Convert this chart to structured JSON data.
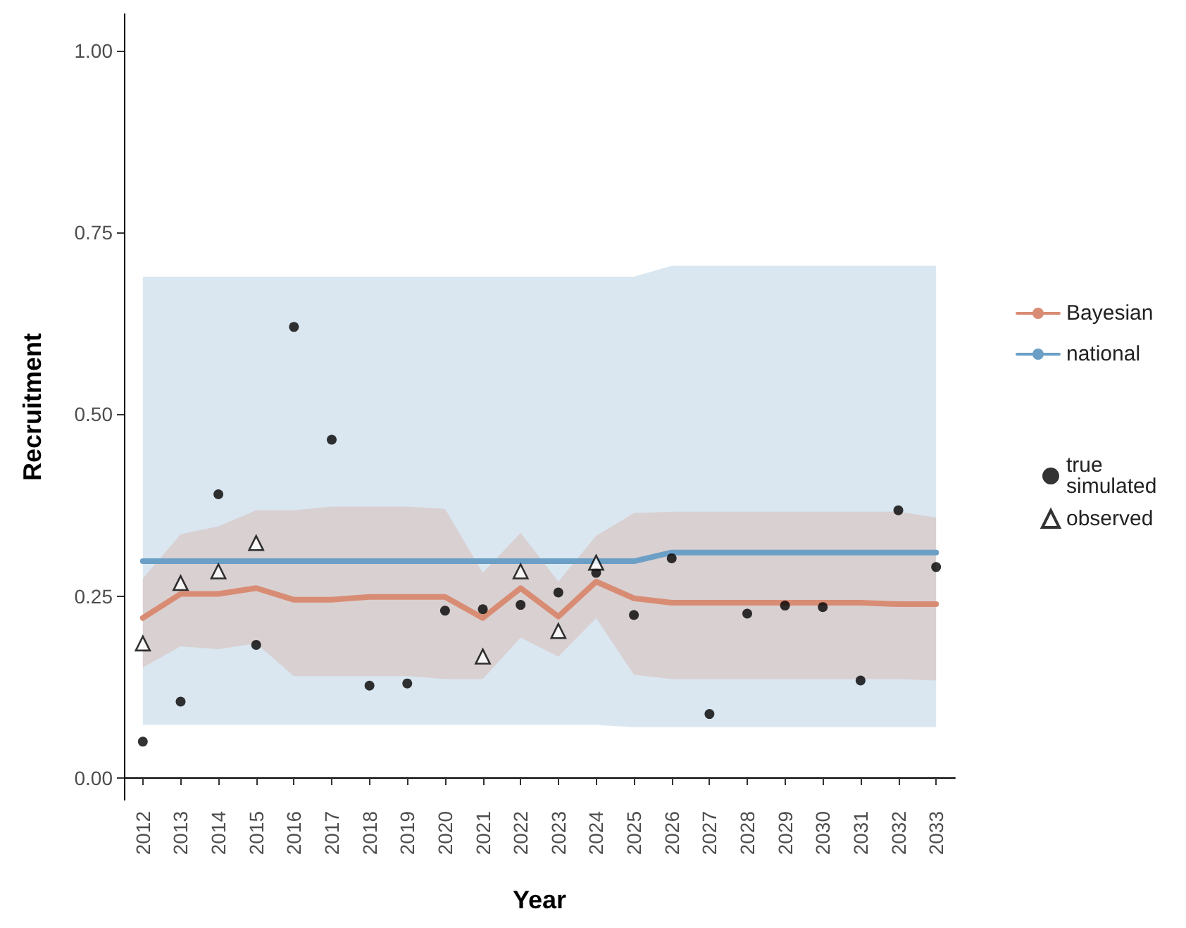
{
  "chart_data": {
    "type": "line",
    "xlabel": "Year",
    "ylabel": "Recruitment",
    "categories": [
      "2012",
      "2013",
      "2014",
      "2015",
      "2016",
      "2017",
      "2018",
      "2019",
      "2020",
      "2021",
      "2022",
      "2023",
      "2024",
      "2025",
      "2026",
      "2027",
      "2028",
      "2029",
      "2030",
      "2031",
      "2032",
      "2033"
    ],
    "ylim": [
      -0.03,
      1.05
    ],
    "yticks": [
      {
        "value": 0,
        "label": "0.00"
      },
      {
        "value": 0.25,
        "label": "0.25"
      },
      {
        "value": 0.5,
        "label": "0.50"
      },
      {
        "value": 0.75,
        "label": "0.75"
      },
      {
        "value": 1,
        "label": "1.00"
      }
    ],
    "legend": "right",
    "grid": false,
    "series": [
      {
        "name": "Bayesian",
        "color": "#d98c74",
        "marker": "none",
        "line_style": "solid",
        "values": [
          0.22,
          0.253,
          0.253,
          0.261,
          0.245,
          0.245,
          0.249,
          0.249,
          0.249,
          0.22,
          0.261,
          0.222,
          0.27,
          0.247,
          0.241,
          0.241,
          0.241,
          0.241,
          0.241,
          0.241,
          0.239,
          0.239
        ],
        "lower": [
          0.152,
          0.181,
          0.177,
          0.185,
          0.14,
          0.14,
          0.14,
          0.14,
          0.136,
          0.136,
          0.193,
          0.167,
          0.22,
          0.142,
          0.136,
          0.136,
          0.136,
          0.136,
          0.136,
          0.136,
          0.136,
          0.134
        ],
        "upper": [
          0.274,
          0.335,
          0.346,
          0.368,
          0.368,
          0.373,
          0.373,
          0.373,
          0.37,
          0.282,
          0.337,
          0.27,
          0.333,
          0.364,
          0.366,
          0.366,
          0.366,
          0.366,
          0.366,
          0.366,
          0.366,
          0.358
        ]
      },
      {
        "name": "national",
        "color": "#6b9fc6",
        "marker": "none",
        "line_style": "solid",
        "values": [
          0.298,
          0.298,
          0.298,
          0.298,
          0.298,
          0.298,
          0.298,
          0.298,
          0.298,
          0.298,
          0.298,
          0.298,
          0.298,
          0.298,
          0.31,
          0.31,
          0.31,
          0.31,
          0.31,
          0.31,
          0.31,
          0.31
        ],
        "lower": [
          0.073,
          0.073,
          0.073,
          0.073,
          0.073,
          0.073,
          0.073,
          0.073,
          0.073,
          0.073,
          0.073,
          0.073,
          0.073,
          0.07,
          0.07,
          0.07,
          0.07,
          0.07,
          0.07,
          0.07,
          0.07,
          0.07
        ],
        "upper": [
          0.689,
          0.689,
          0.689,
          0.689,
          0.689,
          0.689,
          0.689,
          0.689,
          0.689,
          0.689,
          0.689,
          0.689,
          0.689,
          0.689,
          0.704,
          0.704,
          0.704,
          0.704,
          0.704,
          0.704,
          0.704,
          0.704
        ]
      },
      {
        "name": "true simulated",
        "type": "scatter",
        "color": "#000000",
        "marker": "circle",
        "values": [
          0.05,
          0.105,
          0.39,
          0.183,
          0.62,
          0.465,
          0.127,
          0.13,
          0.23,
          0.232,
          0.238,
          0.255,
          0.282,
          0.224,
          0.302,
          0.088,
          0.226,
          0.237,
          0.235,
          0.134,
          0.368,
          0.29
        ]
      },
      {
        "name": "observed",
        "type": "scatter",
        "color": "#000000",
        "marker": "triangle",
        "values": [
          0.185,
          0.268,
          0.284,
          0.323,
          null,
          null,
          null,
          null,
          null,
          0.167,
          0.284,
          0.202,
          0.296,
          null,
          null,
          null,
          null,
          null,
          null,
          null,
          null,
          null
        ]
      }
    ]
  }
}
